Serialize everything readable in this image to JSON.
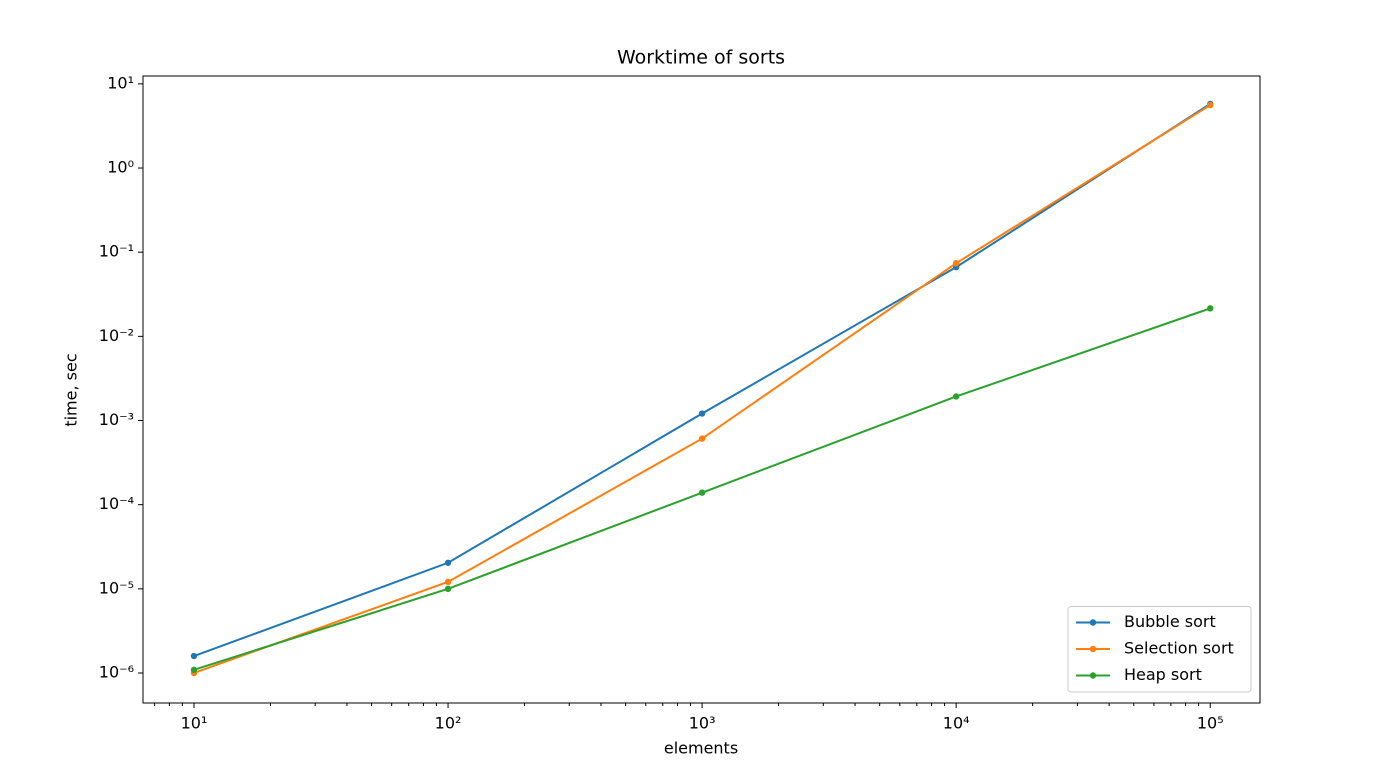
{
  "chart_data": {
    "type": "line",
    "title": "Worktime of sorts",
    "x_label": "elements",
    "y_label": "time, sec",
    "x": [
      10,
      100,
      1000,
      10000,
      100000
    ],
    "series": [
      {
        "name": "Bubble sort",
        "color": "#1f77b4",
        "values": [
          1.59e-06,
          2.04e-05,
          0.00121,
          0.0664,
          5.78
        ]
      },
      {
        "name": "Selection sort",
        "color": "#ff7f0e",
        "values": [
          1e-06,
          1.21e-05,
          0.00061,
          0.074,
          5.6
        ]
      },
      {
        "name": "Heap sort",
        "color": "#2ca02c",
        "values": [
          1.09e-06,
          1e-05,
          0.000139,
          0.00193,
          0.0215
        ]
      }
    ],
    "xscale": "log",
    "yscale": "log",
    "xlim": [
      6.3,
      157000
    ],
    "ylim": [
      4.4e-07,
      12.4
    ],
    "xticks": [
      {
        "value": 10,
        "label": "10¹"
      },
      {
        "value": 100,
        "label": "10²"
      },
      {
        "value": 1000,
        "label": "10³"
      },
      {
        "value": 10000,
        "label": "10⁴"
      },
      {
        "value": 100000,
        "label": "10⁵"
      }
    ],
    "xminorticks": [
      7,
      8,
      9,
      20,
      30,
      40,
      50,
      60,
      70,
      80,
      90,
      200,
      300,
      400,
      500,
      600,
      700,
      800,
      900,
      2000,
      3000,
      4000,
      5000,
      6000,
      7000,
      8000,
      9000,
      20000,
      30000,
      40000,
      50000,
      60000,
      70000,
      80000,
      90000
    ],
    "yticks": [
      {
        "value": 1e-06,
        "label": "10⁻⁶"
      },
      {
        "value": 1e-05,
        "label": "10⁻⁵"
      },
      {
        "value": 0.0001,
        "label": "10⁻⁴"
      },
      {
        "value": 0.001,
        "label": "10⁻³"
      },
      {
        "value": 0.01,
        "label": "10⁻²"
      },
      {
        "value": 0.1,
        "label": "10⁻¹"
      },
      {
        "value": 1,
        "label": "10⁰"
      },
      {
        "value": 10,
        "label": "10¹"
      }
    ],
    "grid": false,
    "legend": "lower right"
  }
}
